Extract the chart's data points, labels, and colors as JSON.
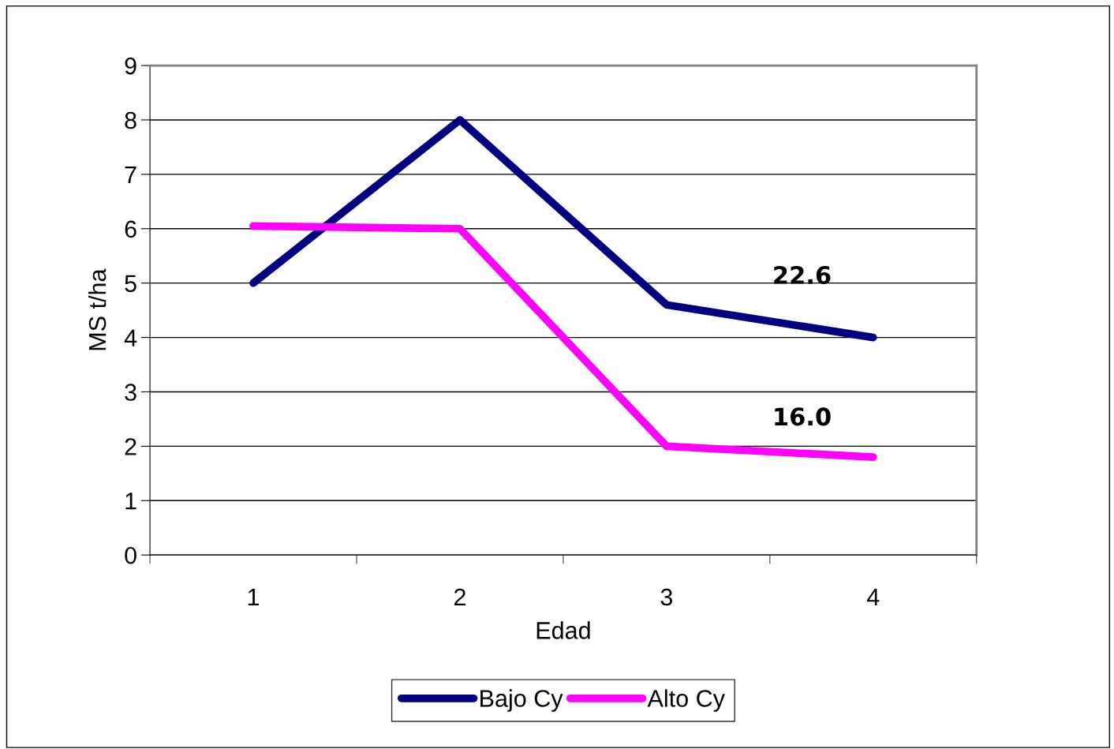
{
  "chart_data": {
    "type": "line",
    "xlabel": "Edad",
    "ylabel": "MS t/ha",
    "categories": [
      "1",
      "2",
      "3",
      "4"
    ],
    "series": [
      {
        "name": "Bajo Cy",
        "color": "#000080",
        "values": [
          5,
          8,
          4.6,
          4.0
        ]
      },
      {
        "name": "Alto Cy",
        "color": "#ff00ff",
        "values": [
          6.05,
          6.0,
          2.0,
          1.8
        ]
      }
    ],
    "annotations": [
      "22.6",
      "16.0"
    ],
    "ylim": [
      0,
      9
    ],
    "yticks": [
      0,
      1,
      2,
      3,
      4,
      5,
      6,
      7,
      8,
      9
    ],
    "grid": "y",
    "legend": "bottom",
    "marker": "none",
    "line_style": "solid"
  }
}
